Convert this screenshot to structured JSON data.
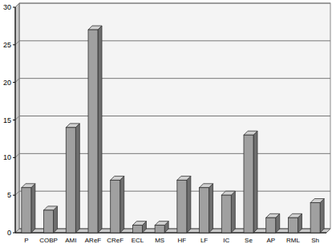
{
  "chart_data": {
    "type": "bar",
    "categories": [
      "P",
      "COBP",
      "AMI",
      "AReF",
      "CReF",
      "ECL",
      "MS",
      "HF",
      "LF",
      "IC",
      "Se",
      "AP",
      "RML",
      "Sh"
    ],
    "values": [
      6,
      3,
      14,
      27,
      7,
      1,
      1,
      7,
      6,
      5,
      13,
      2,
      2,
      4
    ],
    "color": "#a0a0a0",
    "ylim": [
      0,
      30
    ],
    "yticks": [
      0,
      5,
      10,
      15,
      20,
      25,
      30
    ],
    "grid": true
  }
}
